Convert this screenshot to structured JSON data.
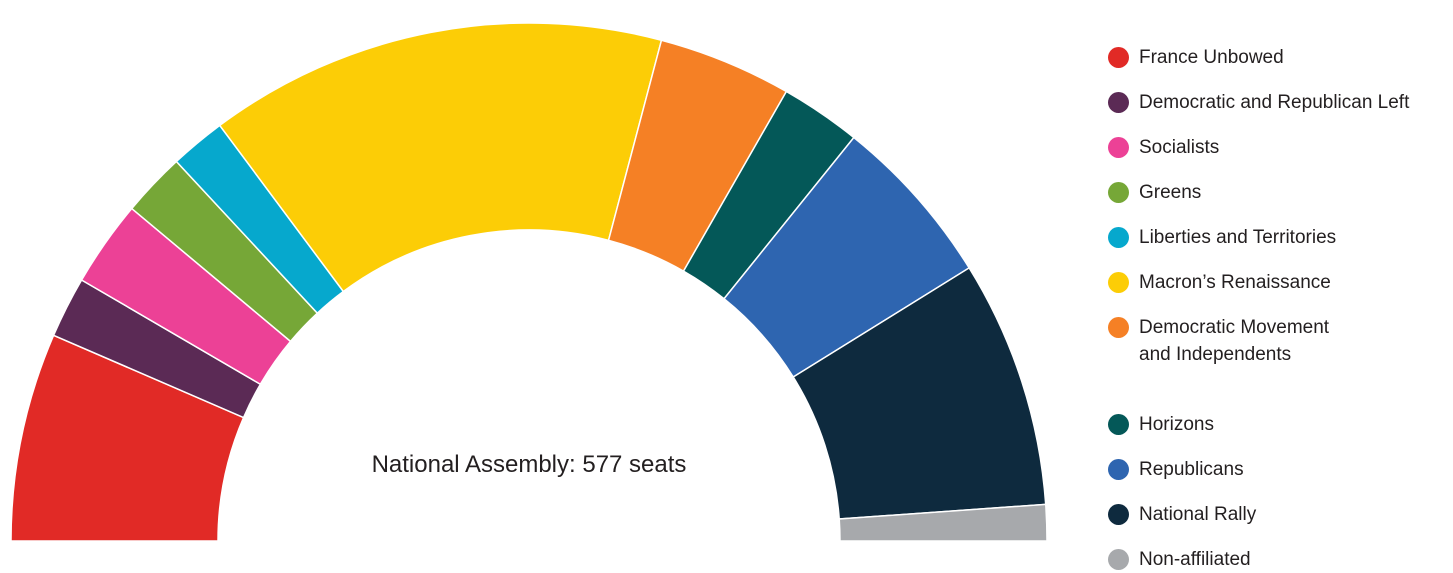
{
  "chart_data": {
    "type": "pie",
    "subtype": "semicircle-parliament",
    "title": "National Assembly: 577 seats",
    "total": 577,
    "legend_position": "right",
    "series": [
      {
        "name": "France Unbowed",
        "value": 75,
        "color": "#e12a26"
      },
      {
        "name": "Democratic and Republican Left",
        "value": 22,
        "color": "#5b2a55"
      },
      {
        "name": "Socialists",
        "value": 31,
        "color": "#ec4196"
      },
      {
        "name": "Greens",
        "value": 23,
        "color": "#76a737"
      },
      {
        "name": "Liberties and Territories",
        "value": 20,
        "color": "#06a8cd"
      },
      {
        "name": "Macron’s Renaissance",
        "value": 165,
        "color": "#fccd06"
      },
      {
        "name": "Democratic Movement\nand Independents",
        "value": 48,
        "color": "#f58025"
      },
      {
        "name": "Horizons",
        "value": 29,
        "color": "#045858"
      },
      {
        "name": "Republicans",
        "value": 62,
        "color": "#2e65b0"
      },
      {
        "name": "National Rally",
        "value": 89,
        "color": "#0e2a3e"
      },
      {
        "name": "Non-affiliated",
        "value": 13,
        "color": "#a7a9ac"
      }
    ]
  }
}
